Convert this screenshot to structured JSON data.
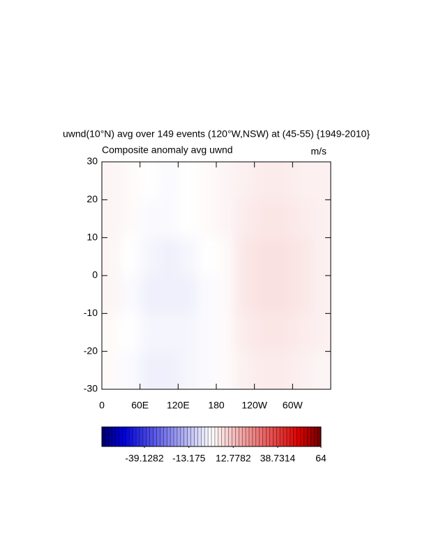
{
  "chart_data": {
    "type": "contour",
    "title": "uwnd(10°N) avg over 149 events (120°W,NSW) at (45-55) {1949-2010}",
    "subtitle_left": "Composite anomaly avg uwnd",
    "subtitle_right": "m/s",
    "xlim": [
      0,
      360
    ],
    "ylim": [
      -30,
      30
    ],
    "xticks": [
      0,
      {
        "value": 60,
        "label": "60E"
      },
      {
        "value": 120,
        "label": "120E"
      },
      180,
      {
        "value": 240,
        "label": "120W"
      },
      {
        "value": 300,
        "label": "60W"
      }
    ],
    "yticks": [
      -30,
      -20,
      -10,
      0,
      10,
      20,
      30
    ],
    "lon": [
      15,
      45,
      75,
      105,
      135,
      165,
      195,
      225,
      255,
      285,
      315,
      345
    ],
    "lat": [
      25,
      15,
      5,
      -5,
      -15,
      -25
    ],
    "z": [
      [
        2,
        1,
        0,
        -1,
        0,
        1,
        2,
        3,
        4,
        4,
        3,
        3
      ],
      [
        2,
        1,
        -1,
        -1,
        0,
        1,
        2,
        4,
        5,
        5,
        4,
        3
      ],
      [
        2,
        0,
        -2,
        -3,
        -2,
        0,
        1,
        5,
        6,
        6,
        5,
        3
      ],
      [
        2,
        -1,
        -3,
        -3,
        -3,
        -1,
        1,
        5,
        6,
        6,
        5,
        3
      ],
      [
        1,
        0,
        -2,
        -2,
        -2,
        -1,
        1,
        4,
        5,
        5,
        4,
        3
      ],
      [
        1,
        -1,
        -3,
        -3,
        -2,
        -1,
        1,
        3,
        4,
        4,
        3,
        2
      ]
    ],
    "colorbar": {
      "lim": [
        -64,
        64
      ],
      "ticks": [
        -39.1282,
        -13.175,
        12.7782,
        38.7314,
        64
      ]
    }
  }
}
